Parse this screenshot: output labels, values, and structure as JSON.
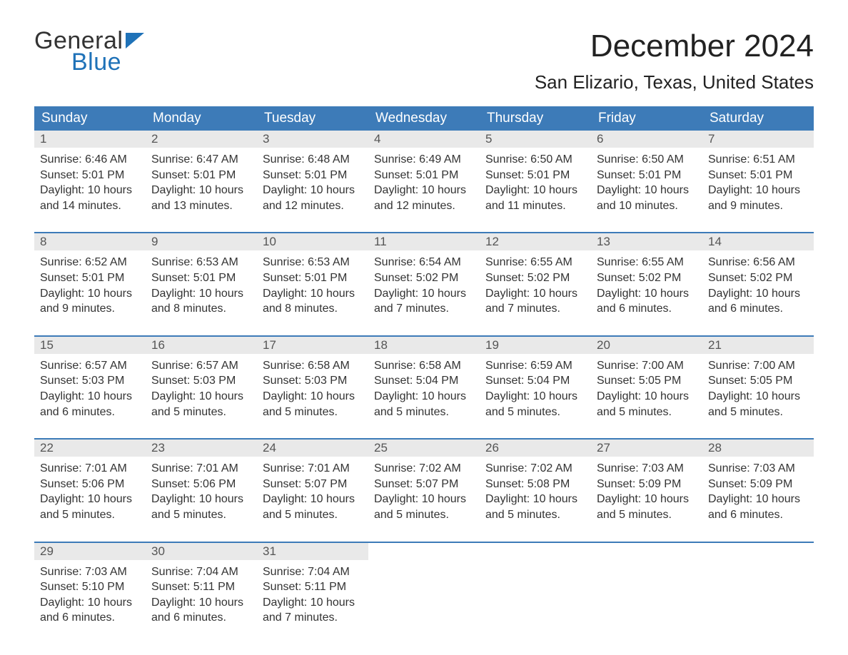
{
  "logo": {
    "word1": "General",
    "word2": "Blue",
    "flag_color": "#1f72b8"
  },
  "title": "December 2024",
  "location": "San Elizario, Texas, United States",
  "colors": {
    "header_bg": "#3d7bb8",
    "header_text": "#ffffff",
    "daynum_bg": "#e9e9e9",
    "daynum_text": "#555555",
    "body_text": "#333333",
    "week_border": "#3d7bb8",
    "page_bg": "#ffffff"
  },
  "day_headers": [
    "Sunday",
    "Monday",
    "Tuesday",
    "Wednesday",
    "Thursday",
    "Friday",
    "Saturday"
  ],
  "weeks": [
    [
      {
        "n": "1",
        "sunrise": "Sunrise: 6:46 AM",
        "sunset": "Sunset: 5:01 PM",
        "dl1": "Daylight: 10 hours",
        "dl2": "and 14 minutes."
      },
      {
        "n": "2",
        "sunrise": "Sunrise: 6:47 AM",
        "sunset": "Sunset: 5:01 PM",
        "dl1": "Daylight: 10 hours",
        "dl2": "and 13 minutes."
      },
      {
        "n": "3",
        "sunrise": "Sunrise: 6:48 AM",
        "sunset": "Sunset: 5:01 PM",
        "dl1": "Daylight: 10 hours",
        "dl2": "and 12 minutes."
      },
      {
        "n": "4",
        "sunrise": "Sunrise: 6:49 AM",
        "sunset": "Sunset: 5:01 PM",
        "dl1": "Daylight: 10 hours",
        "dl2": "and 12 minutes."
      },
      {
        "n": "5",
        "sunrise": "Sunrise: 6:50 AM",
        "sunset": "Sunset: 5:01 PM",
        "dl1": "Daylight: 10 hours",
        "dl2": "and 11 minutes."
      },
      {
        "n": "6",
        "sunrise": "Sunrise: 6:50 AM",
        "sunset": "Sunset: 5:01 PM",
        "dl1": "Daylight: 10 hours",
        "dl2": "and 10 minutes."
      },
      {
        "n": "7",
        "sunrise": "Sunrise: 6:51 AM",
        "sunset": "Sunset: 5:01 PM",
        "dl1": "Daylight: 10 hours",
        "dl2": "and 9 minutes."
      }
    ],
    [
      {
        "n": "8",
        "sunrise": "Sunrise: 6:52 AM",
        "sunset": "Sunset: 5:01 PM",
        "dl1": "Daylight: 10 hours",
        "dl2": "and 9 minutes."
      },
      {
        "n": "9",
        "sunrise": "Sunrise: 6:53 AM",
        "sunset": "Sunset: 5:01 PM",
        "dl1": "Daylight: 10 hours",
        "dl2": "and 8 minutes."
      },
      {
        "n": "10",
        "sunrise": "Sunrise: 6:53 AM",
        "sunset": "Sunset: 5:01 PM",
        "dl1": "Daylight: 10 hours",
        "dl2": "and 8 minutes."
      },
      {
        "n": "11",
        "sunrise": "Sunrise: 6:54 AM",
        "sunset": "Sunset: 5:02 PM",
        "dl1": "Daylight: 10 hours",
        "dl2": "and 7 minutes."
      },
      {
        "n": "12",
        "sunrise": "Sunrise: 6:55 AM",
        "sunset": "Sunset: 5:02 PM",
        "dl1": "Daylight: 10 hours",
        "dl2": "and 7 minutes."
      },
      {
        "n": "13",
        "sunrise": "Sunrise: 6:55 AM",
        "sunset": "Sunset: 5:02 PM",
        "dl1": "Daylight: 10 hours",
        "dl2": "and 6 minutes."
      },
      {
        "n": "14",
        "sunrise": "Sunrise: 6:56 AM",
        "sunset": "Sunset: 5:02 PM",
        "dl1": "Daylight: 10 hours",
        "dl2": "and 6 minutes."
      }
    ],
    [
      {
        "n": "15",
        "sunrise": "Sunrise: 6:57 AM",
        "sunset": "Sunset: 5:03 PM",
        "dl1": "Daylight: 10 hours",
        "dl2": "and 6 minutes."
      },
      {
        "n": "16",
        "sunrise": "Sunrise: 6:57 AM",
        "sunset": "Sunset: 5:03 PM",
        "dl1": "Daylight: 10 hours",
        "dl2": "and 5 minutes."
      },
      {
        "n": "17",
        "sunrise": "Sunrise: 6:58 AM",
        "sunset": "Sunset: 5:03 PM",
        "dl1": "Daylight: 10 hours",
        "dl2": "and 5 minutes."
      },
      {
        "n": "18",
        "sunrise": "Sunrise: 6:58 AM",
        "sunset": "Sunset: 5:04 PM",
        "dl1": "Daylight: 10 hours",
        "dl2": "and 5 minutes."
      },
      {
        "n": "19",
        "sunrise": "Sunrise: 6:59 AM",
        "sunset": "Sunset: 5:04 PM",
        "dl1": "Daylight: 10 hours",
        "dl2": "and 5 minutes."
      },
      {
        "n": "20",
        "sunrise": "Sunrise: 7:00 AM",
        "sunset": "Sunset: 5:05 PM",
        "dl1": "Daylight: 10 hours",
        "dl2": "and 5 minutes."
      },
      {
        "n": "21",
        "sunrise": "Sunrise: 7:00 AM",
        "sunset": "Sunset: 5:05 PM",
        "dl1": "Daylight: 10 hours",
        "dl2": "and 5 minutes."
      }
    ],
    [
      {
        "n": "22",
        "sunrise": "Sunrise: 7:01 AM",
        "sunset": "Sunset: 5:06 PM",
        "dl1": "Daylight: 10 hours",
        "dl2": "and 5 minutes."
      },
      {
        "n": "23",
        "sunrise": "Sunrise: 7:01 AM",
        "sunset": "Sunset: 5:06 PM",
        "dl1": "Daylight: 10 hours",
        "dl2": "and 5 minutes."
      },
      {
        "n": "24",
        "sunrise": "Sunrise: 7:01 AM",
        "sunset": "Sunset: 5:07 PM",
        "dl1": "Daylight: 10 hours",
        "dl2": "and 5 minutes."
      },
      {
        "n": "25",
        "sunrise": "Sunrise: 7:02 AM",
        "sunset": "Sunset: 5:07 PM",
        "dl1": "Daylight: 10 hours",
        "dl2": "and 5 minutes."
      },
      {
        "n": "26",
        "sunrise": "Sunrise: 7:02 AM",
        "sunset": "Sunset: 5:08 PM",
        "dl1": "Daylight: 10 hours",
        "dl2": "and 5 minutes."
      },
      {
        "n": "27",
        "sunrise": "Sunrise: 7:03 AM",
        "sunset": "Sunset: 5:09 PM",
        "dl1": "Daylight: 10 hours",
        "dl2": "and 5 minutes."
      },
      {
        "n": "28",
        "sunrise": "Sunrise: 7:03 AM",
        "sunset": "Sunset: 5:09 PM",
        "dl1": "Daylight: 10 hours",
        "dl2": "and 6 minutes."
      }
    ],
    [
      {
        "n": "29",
        "sunrise": "Sunrise: 7:03 AM",
        "sunset": "Sunset: 5:10 PM",
        "dl1": "Daylight: 10 hours",
        "dl2": "and 6 minutes."
      },
      {
        "n": "30",
        "sunrise": "Sunrise: 7:04 AM",
        "sunset": "Sunset: 5:11 PM",
        "dl1": "Daylight: 10 hours",
        "dl2": "and 6 minutes."
      },
      {
        "n": "31",
        "sunrise": "Sunrise: 7:04 AM",
        "sunset": "Sunset: 5:11 PM",
        "dl1": "Daylight: 10 hours",
        "dl2": "and 7 minutes."
      },
      null,
      null,
      null,
      null
    ]
  ]
}
